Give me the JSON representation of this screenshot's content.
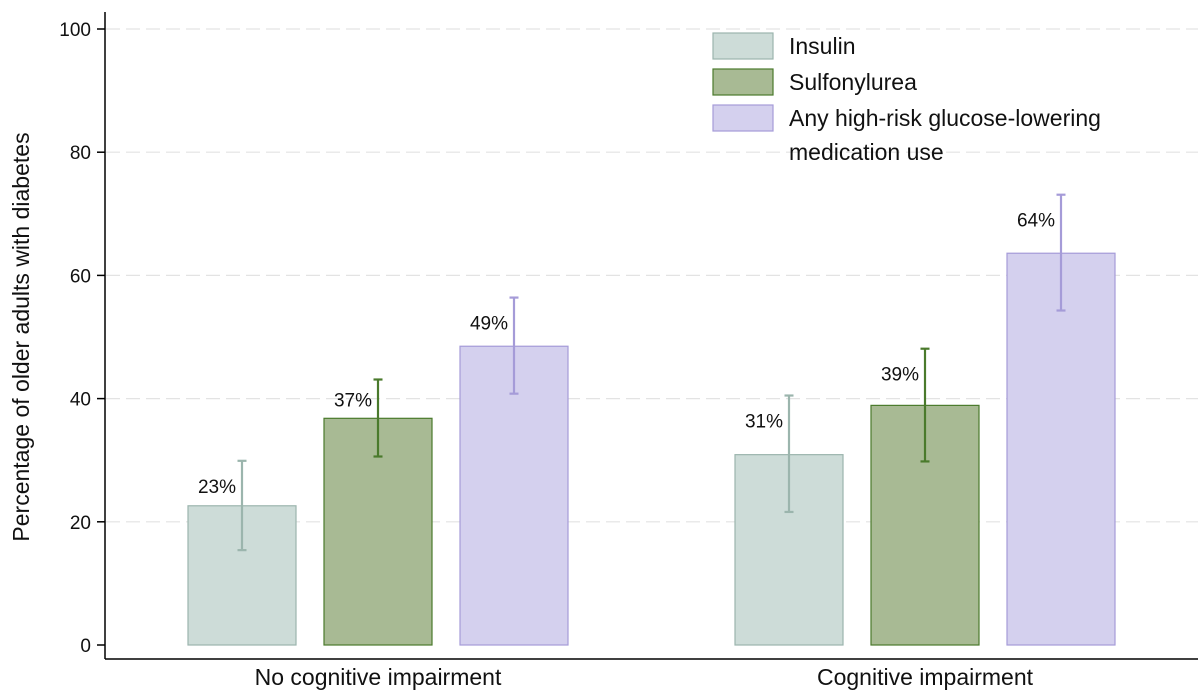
{
  "chart_data": {
    "type": "bar",
    "title": "",
    "xlabel": "",
    "ylabel": "Percentage of older adults with diabetes",
    "ylim": [
      0,
      100
    ],
    "yticks": [
      0,
      20,
      40,
      60,
      80,
      100
    ],
    "grid": true,
    "legend_position": "top-right",
    "categories": [
      "No cognitive impairment",
      "Cognitive impairment"
    ],
    "series": [
      {
        "name": "Insulin",
        "values": [
          22.6,
          30.9
        ],
        "ci_low": [
          15.4,
          21.6
        ],
        "ci_high": [
          29.9,
          40.5
        ],
        "labels": [
          "23%",
          "31%"
        ],
        "fill": "#cddcd8",
        "stroke": "#9bb5ad"
      },
      {
        "name": "Sulfonylurea",
        "values": [
          36.8,
          38.9
        ],
        "ci_low": [
          30.6,
          29.8
        ],
        "ci_high": [
          43.1,
          48.1
        ],
        "labels": [
          "37%",
          "39%"
        ],
        "fill": "#a8ba94",
        "stroke": "#4a7a2c"
      },
      {
        "name": "Any high-risk glucose-lowering medication use",
        "legend_lines": [
          "Any high-risk glucose-lowering",
          "medication use"
        ],
        "values": [
          48.5,
          63.6
        ],
        "ci_low": [
          40.8,
          54.3
        ],
        "ci_high": [
          56.4,
          73.1
        ],
        "labels": [
          "49%",
          "64%"
        ],
        "fill": "#d4d0ee",
        "stroke": "#a59bd8"
      }
    ]
  }
}
